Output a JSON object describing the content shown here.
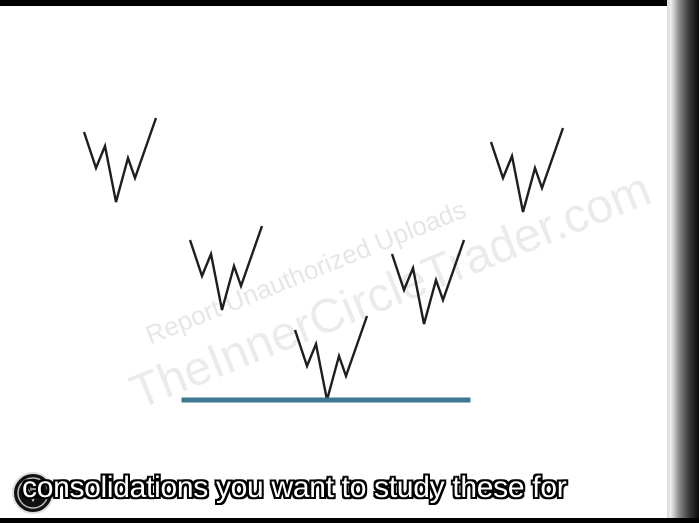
{
  "watermark": {
    "line1": "Report Unauthorized Uploads",
    "line2": "TheInnerCircleTrader.com"
  },
  "subtitle": {
    "text": "consolidations you want to study these for"
  },
  "colors": {
    "pattern_stroke": "#1e1e1e",
    "baseline": "#3c7a92",
    "watermark": "#e6e6e6"
  },
  "icons": {
    "logo": "channel-logo-icon"
  }
}
